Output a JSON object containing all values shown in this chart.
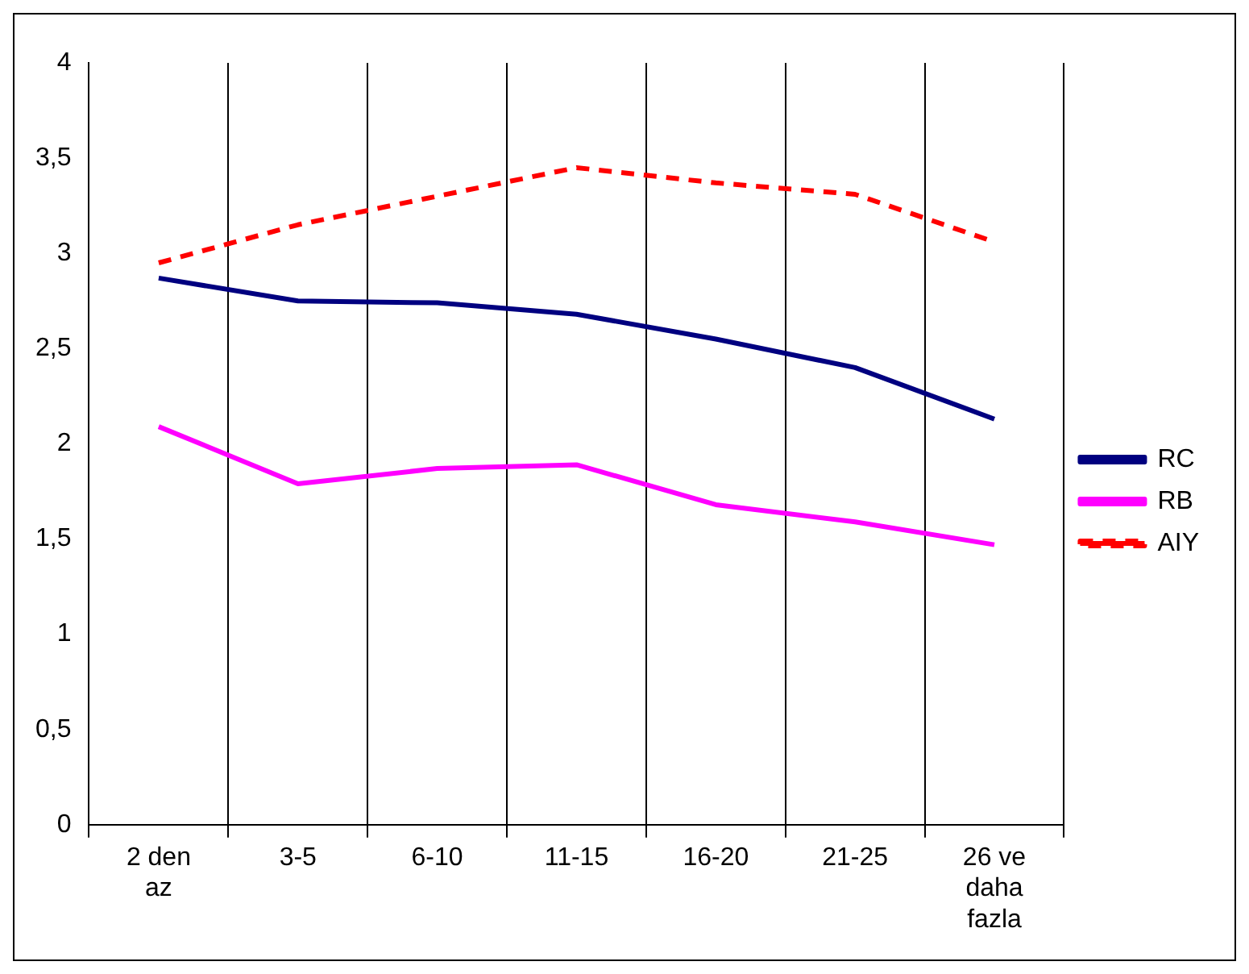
{
  "chart_data": {
    "type": "line",
    "categories": [
      "2 den az",
      "3-5",
      "6-10",
      "11-15",
      "16-20",
      "21-25",
      "26 ve daha fazla"
    ],
    "series": [
      {
        "name": "RC",
        "color": "#000080",
        "values": [
          2.87,
          2.75,
          2.74,
          2.68,
          2.55,
          2.4,
          2.13
        ]
      },
      {
        "name": "RB",
        "color": "#ff00ff",
        "values": [
          2.09,
          1.79,
          1.87,
          1.89,
          1.68,
          1.59,
          1.47
        ]
      },
      {
        "name": "AIY",
        "color": "#ff0000",
        "line_style": "dashed",
        "values": [
          2.95,
          3.15,
          3.3,
          3.45,
          3.37,
          3.31,
          3.06
        ]
      }
    ],
    "ylim": [
      0,
      4
    ],
    "yticks": [
      0,
      {
        "value": 0.5,
        "label": "0,5"
      },
      1,
      {
        "value": 1.5,
        "label": "1,5"
      },
      2,
      {
        "value": 2.5,
        "label": "2,5"
      },
      3,
      {
        "value": 3.5,
        "label": "3,5"
      },
      4
    ],
    "grid": "x",
    "legend": "right",
    "marker": "none"
  }
}
